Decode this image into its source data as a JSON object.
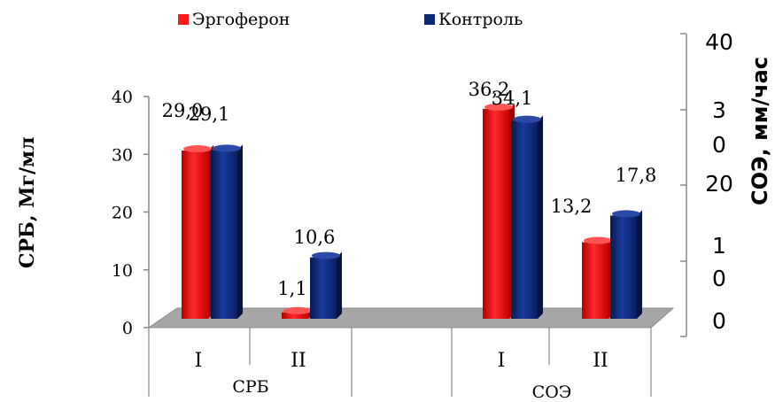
{
  "chart_data": {
    "type": "bar",
    "legend": [
      {
        "name": "Эргоферон",
        "color": "#ff1a1a"
      },
      {
        "name": "Контроль",
        "color": "#0b2a7a"
      }
    ],
    "legend_position": "top",
    "groups": [
      {
        "name": "СРБ",
        "categories": [
          "I",
          "II"
        ],
        "axis": "left",
        "series": [
          {
            "name": "Эргоферон",
            "values": [
              29.0,
              1.1
            ],
            "labels": [
              "29,0",
              "1,1"
            ]
          },
          {
            "name": "Контроль",
            "values": [
              29.1,
              10.6
            ],
            "labels": [
              "29,1",
              "10,6"
            ]
          }
        ]
      },
      {
        "name": "СОЭ",
        "categories": [
          "I",
          "II"
        ],
        "axis": "right",
        "series": [
          {
            "name": "Эргоферон",
            "values": [
              36.2,
              13.2
            ],
            "labels": [
              "36,2",
              "13,2"
            ]
          },
          {
            "name": "Контроль",
            "values": [
              34.1,
              17.8
            ],
            "labels": [
              "34,1",
              "17,8"
            ]
          }
        ]
      }
    ],
    "left_axis": {
      "label": "СРБ, Мг/мл",
      "ticks": [
        "0",
        "10",
        "20",
        "30",
        "40"
      ],
      "ylim": [
        0,
        40
      ]
    },
    "right_axis": {
      "label": "СОЭ, мм/час",
      "ticks": [
        "0",
        "10",
        "20",
        "30",
        "40"
      ],
      "ylim": [
        0,
        40
      ]
    },
    "grid": false
  }
}
